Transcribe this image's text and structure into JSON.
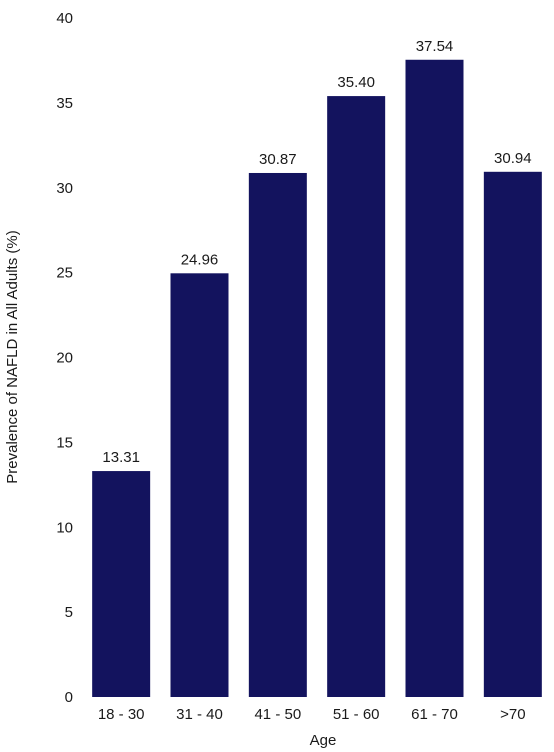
{
  "chart_data": {
    "type": "bar",
    "title": "",
    "xlabel": "Age",
    "ylabel": "Prevalence of NAFLD in All Adults (%)",
    "categories": [
      "18 - 30",
      "31 - 40",
      "41 - 50",
      "51 - 60",
      "61 - 70",
      ">70"
    ],
    "values": [
      13.31,
      24.96,
      30.87,
      35.4,
      37.54,
      30.94
    ],
    "value_labels": [
      "13.31",
      "24.96",
      "30.87",
      "35.40",
      "37.54",
      "30.94"
    ],
    "ylim": [
      0,
      40
    ],
    "yticks": [
      0,
      5,
      10,
      15,
      20,
      25,
      30,
      35,
      40
    ],
    "grid": false,
    "legend": "none",
    "bar_color": "#13135e"
  }
}
